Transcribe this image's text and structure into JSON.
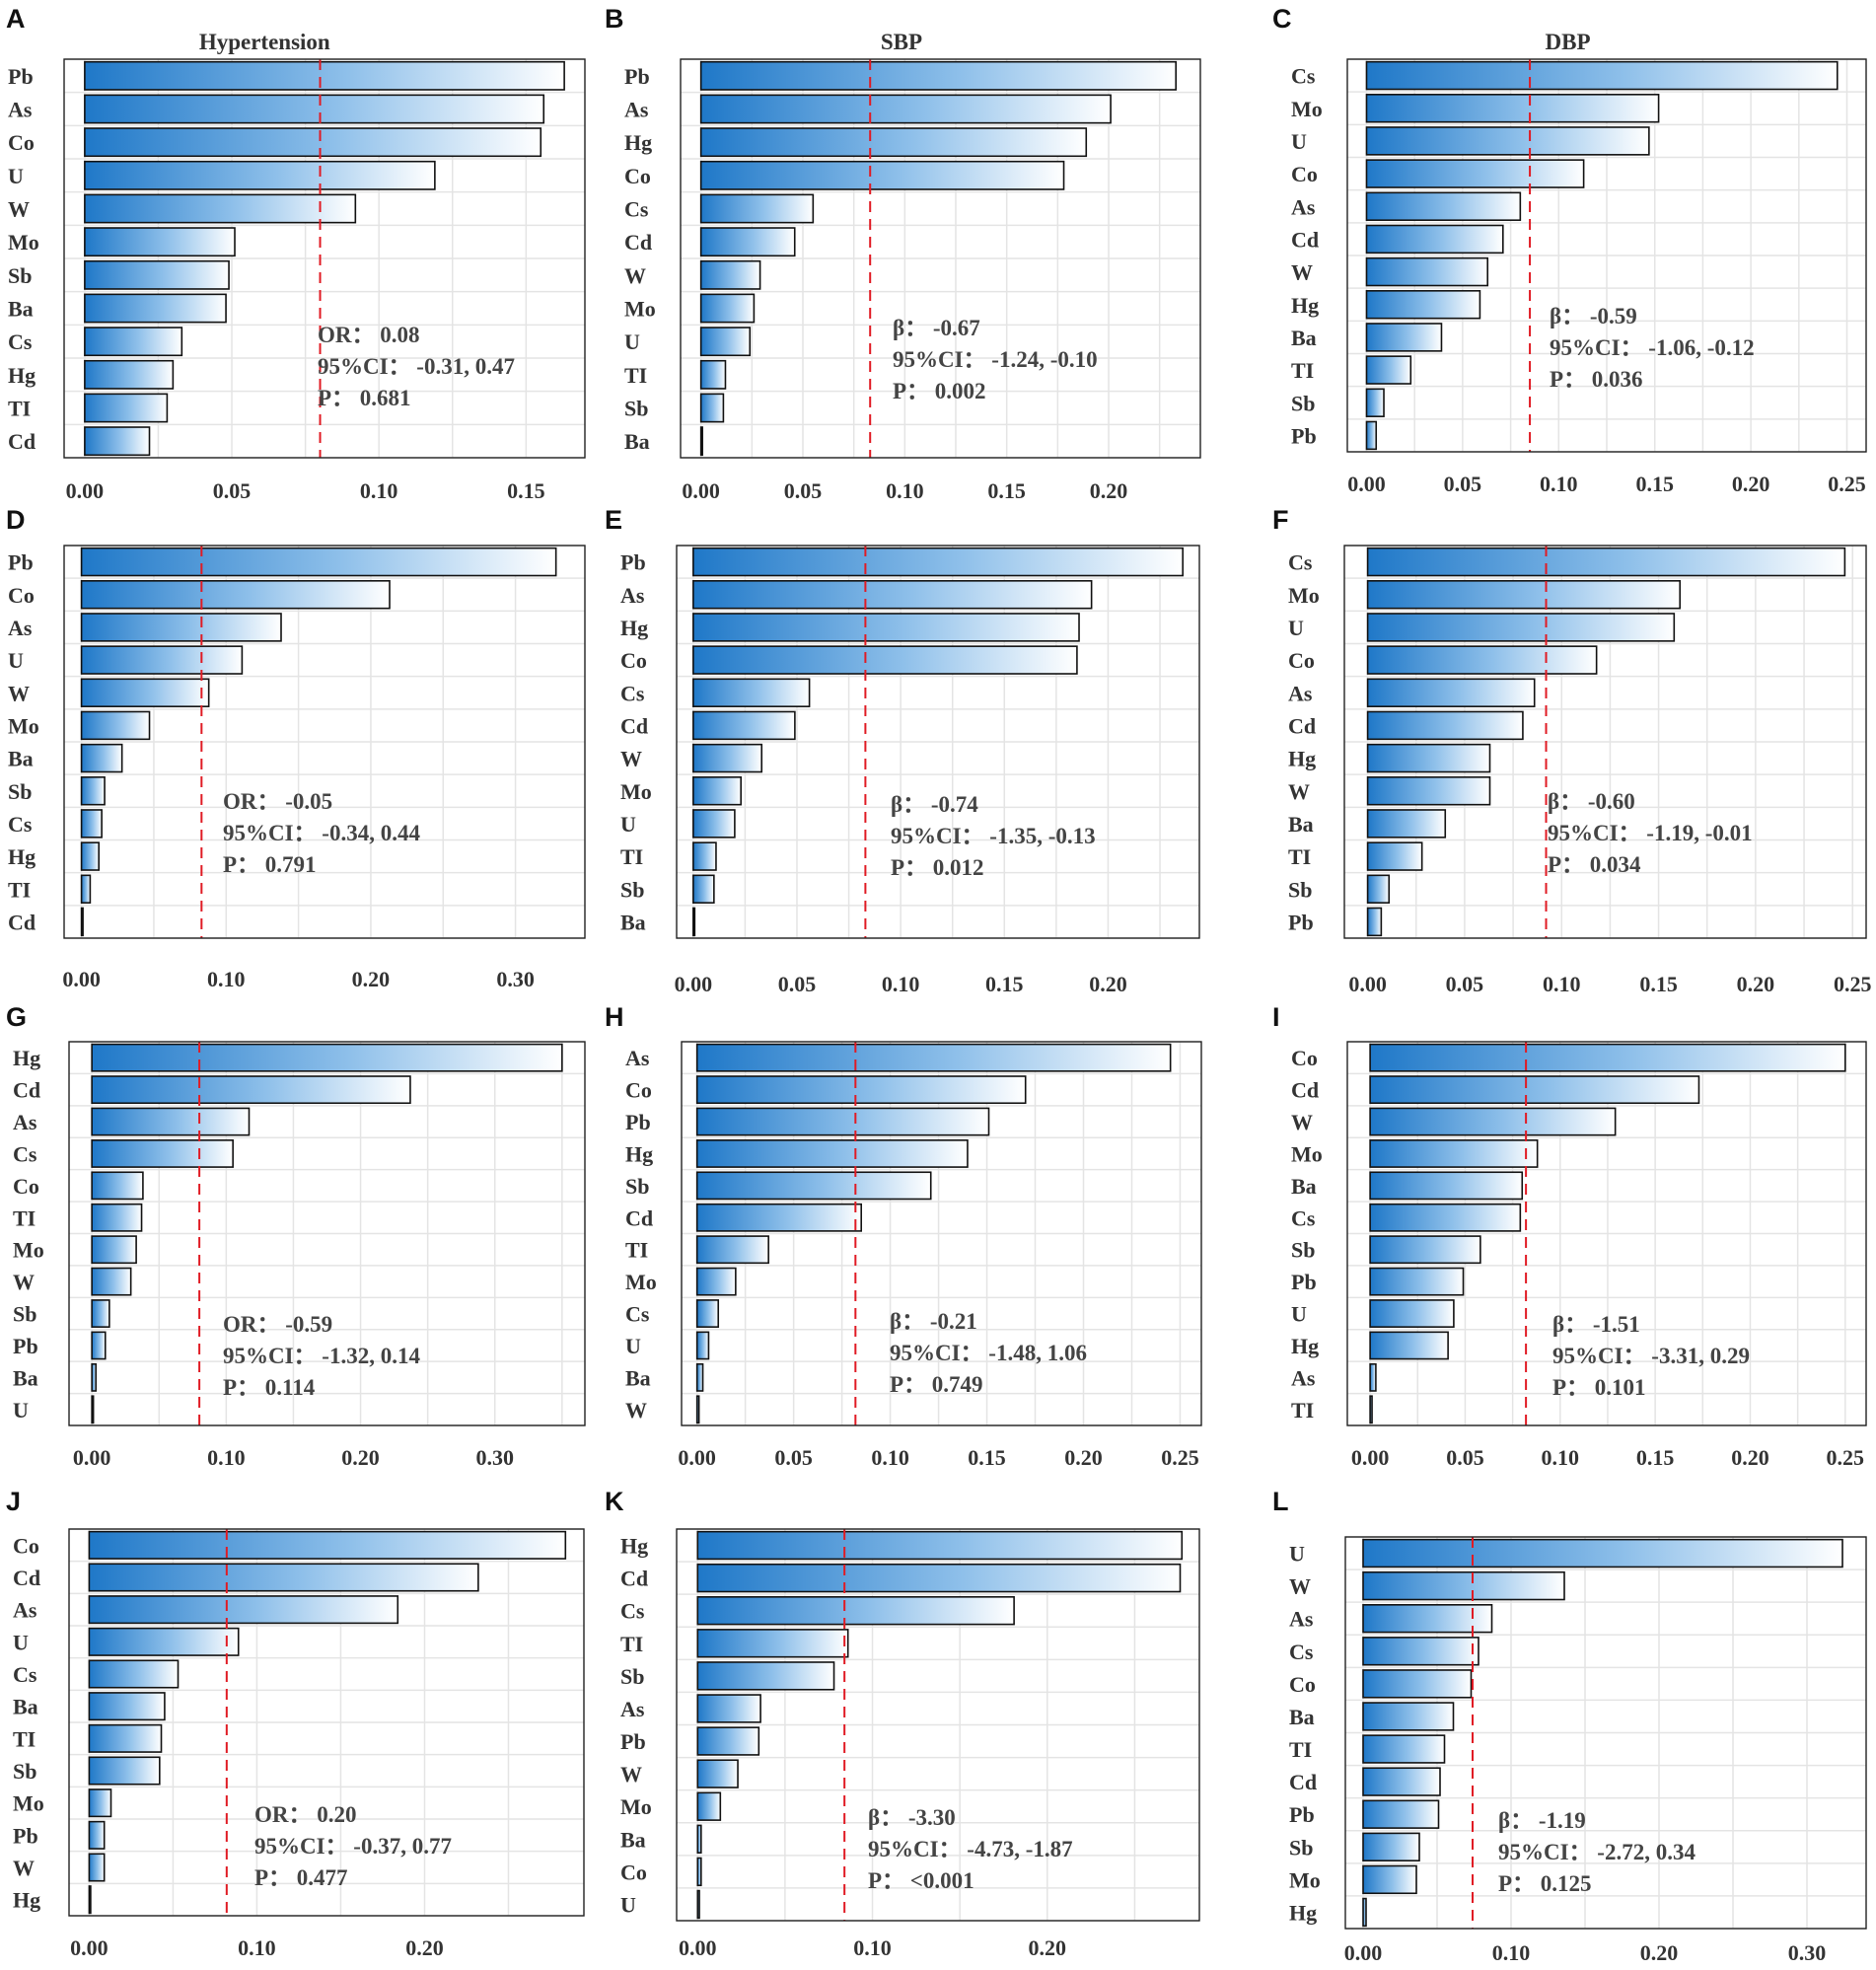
{
  "colors": {
    "bar_dark": "#1f78c8",
    "bar_light": "#ffffff",
    "reference_line": "#e01b24",
    "grid": "#e4e4e4"
  },
  "chart_data": [
    {
      "panel": "A",
      "title": "Hypertension",
      "type": "bar",
      "orientation": "horizontal",
      "categories": [
        "Pb",
        "As",
        "Co",
        "U",
        "W",
        "Mo",
        "Sb",
        "Ba",
        "Cs",
        "Hg",
        "TI",
        "Cd"
      ],
      "values": [
        0.163,
        0.156,
        0.155,
        0.119,
        0.092,
        0.051,
        0.049,
        0.048,
        0.033,
        0.03,
        0.028,
        0.022
      ],
      "xlim": [
        -0.007,
        0.17
      ],
      "xticks": [
        "0.00",
        "0.05",
        "0.10",
        "0.15"
      ],
      "reference_line": 0.08,
      "stats": [
        "OR：  0.08",
        "95%CI：  -0.31, 0.47",
        "P：  0.681"
      ]
    },
    {
      "panel": "B",
      "title": "SBP",
      "type": "bar",
      "orientation": "horizontal",
      "categories": [
        "Pb",
        "As",
        "Hg",
        "Co",
        "Cs",
        "Cd",
        "W",
        "Mo",
        "U",
        "TI",
        "Sb",
        "Ba"
      ],
      "values": [
        0.233,
        0.201,
        0.189,
        0.178,
        0.055,
        0.046,
        0.029,
        0.026,
        0.024,
        0.012,
        0.011,
        0.0
      ],
      "xlim": [
        -0.01,
        0.245
      ],
      "xticks": [
        "0.00",
        "0.05",
        "0.10",
        "0.15",
        "0.20"
      ],
      "reference_line": 0.083,
      "stats": [
        "β：  -0.67",
        "95%CI：  -1.24, -0.10",
        "P：  0.002"
      ]
    },
    {
      "panel": "C",
      "title": "DBP",
      "type": "bar",
      "orientation": "horizontal",
      "categories": [
        "Cs",
        "Mo",
        "U",
        "Co",
        "As",
        "Cd",
        "W",
        "Hg",
        "Ba",
        "TI",
        "Sb",
        "Pb"
      ],
      "values": [
        0.245,
        0.152,
        0.147,
        0.113,
        0.08,
        0.071,
        0.063,
        0.059,
        0.039,
        0.023,
        0.009,
        0.005
      ],
      "xlim": [
        -0.01,
        0.26
      ],
      "xticks": [
        "0.00",
        "0.05",
        "0.10",
        "0.15",
        "0.20",
        "0.25"
      ],
      "reference_line": 0.085,
      "stats": [
        "β：  -0.59",
        "95%CI：  -1.06, -0.12",
        "P：  0.036"
      ]
    },
    {
      "panel": "D",
      "title": "",
      "type": "bar",
      "orientation": "horizontal",
      "categories": [
        "Pb",
        "Co",
        "As",
        "U",
        "W",
        "Mo",
        "Ba",
        "Sb",
        "Cs",
        "Hg",
        "TI",
        "Cd"
      ],
      "values": [
        0.328,
        0.213,
        0.138,
        0.111,
        0.088,
        0.047,
        0.028,
        0.016,
        0.014,
        0.012,
        0.006,
        0.0
      ],
      "xlim": [
        -0.012,
        0.348
      ],
      "xticks": [
        "0.00",
        "0.10",
        "0.20",
        "0.30"
      ],
      "reference_line": 0.083,
      "stats": [
        "OR：  -0.05",
        "95%CI：  -0.34, 0.44",
        "P：  0.791"
      ]
    },
    {
      "panel": "E",
      "title": "",
      "type": "bar",
      "orientation": "horizontal",
      "categories": [
        "Pb",
        "As",
        "Hg",
        "Co",
        "Cs",
        "Cd",
        "W",
        "Mo",
        "U",
        "TI",
        "Sb",
        "Ba"
      ],
      "values": [
        0.236,
        0.192,
        0.186,
        0.185,
        0.056,
        0.049,
        0.033,
        0.023,
        0.02,
        0.011,
        0.01,
        0.0
      ],
      "xlim": [
        -0.008,
        0.244
      ],
      "xticks": [
        "0.00",
        "0.05",
        "0.10",
        "0.15",
        "0.20"
      ],
      "reference_line": 0.083,
      "stats": [
        "β：  -0.74",
        "95%CI：  -1.35, -0.13",
        "P：  0.012"
      ]
    },
    {
      "panel": "F",
      "title": "",
      "type": "bar",
      "orientation": "horizontal",
      "categories": [
        "Cs",
        "Mo",
        "U",
        "Co",
        "As",
        "Cd",
        "Hg",
        "W",
        "Ba",
        "TI",
        "Sb",
        "Pb"
      ],
      "values": [
        0.246,
        0.161,
        0.158,
        0.118,
        0.086,
        0.08,
        0.063,
        0.063,
        0.04,
        0.028,
        0.011,
        0.007
      ],
      "xlim": [
        -0.012,
        0.257
      ],
      "xticks": [
        "0.00",
        "0.05",
        "0.10",
        "0.15",
        "0.20",
        "0.25"
      ],
      "reference_line": 0.092,
      "stats": [
        "β：  -0.60",
        "95%CI：  -1.19, -0.01",
        "P：  0.034"
      ]
    },
    {
      "panel": "G",
      "title": "",
      "type": "bar",
      "orientation": "horizontal",
      "categories": [
        "Hg",
        "Cd",
        "As",
        "Cs",
        "Co",
        "TI",
        "Mo",
        "W",
        "Sb",
        "Pb",
        "Ba",
        "U"
      ],
      "values": [
        0.35,
        0.237,
        0.117,
        0.105,
        0.038,
        0.037,
        0.033,
        0.029,
        0.013,
        0.01,
        0.003,
        0.0
      ],
      "xlim": [
        -0.017,
        0.367
      ],
      "xticks": [
        "0.00",
        "0.10",
        "0.20",
        "0.30"
      ],
      "reference_line": 0.08,
      "stats": [
        "OR：  -0.59",
        "95%CI：  -1.32, 0.14",
        "P：  0.114"
      ]
    },
    {
      "panel": "H",
      "title": "",
      "type": "bar",
      "orientation": "horizontal",
      "categories": [
        "As",
        "Co",
        "Pb",
        "Hg",
        "Sb",
        "Cd",
        "TI",
        "Mo",
        "Cs",
        "U",
        "Ba",
        "W"
      ],
      "values": [
        0.245,
        0.17,
        0.151,
        0.14,
        0.121,
        0.085,
        0.037,
        0.02,
        0.011,
        0.006,
        0.003,
        0.001
      ],
      "xlim": [
        -0.008,
        0.261
      ],
      "xticks": [
        "0.00",
        "0.05",
        "0.10",
        "0.15",
        "0.20",
        "0.25"
      ],
      "reference_line": 0.082,
      "stats": [
        "β：  -0.21",
        "95%CI：  -1.48, 1.06",
        "P：  0.749"
      ]
    },
    {
      "panel": "I",
      "title": "",
      "type": "bar",
      "orientation": "horizontal",
      "categories": [
        "Co",
        "Cd",
        "W",
        "Mo",
        "Ba",
        "Cs",
        "Sb",
        "Pb",
        "U",
        "Hg",
        "As",
        "TI"
      ],
      "values": [
        0.25,
        0.173,
        0.129,
        0.088,
        0.08,
        0.079,
        0.058,
        0.049,
        0.044,
        0.041,
        0.003,
        0.001
      ],
      "xlim": [
        -0.012,
        0.261
      ],
      "xticks": [
        "0.00",
        "0.05",
        "0.10",
        "0.15",
        "0.20",
        "0.25"
      ],
      "reference_line": 0.082,
      "stats": [
        "β：  -1.51",
        "95%CI：  -3.31, 0.29",
        "P：  0.101"
      ]
    },
    {
      "panel": "J",
      "title": "",
      "type": "bar",
      "orientation": "horizontal",
      "categories": [
        "Co",
        "Cd",
        "As",
        "U",
        "Cs",
        "Ba",
        "TI",
        "Sb",
        "Mo",
        "Pb",
        "W",
        "Hg"
      ],
      "values": [
        0.284,
        0.232,
        0.184,
        0.089,
        0.053,
        0.045,
        0.043,
        0.042,
        0.013,
        0.009,
        0.009,
        0.0
      ],
      "xlim": [
        -0.012,
        0.295
      ],
      "xticks": [
        "0.00",
        "0.10",
        "0.20"
      ],
      "reference_line": 0.082,
      "stats": [
        "OR：  0.20",
        "95%CI：  -0.37, 0.77",
        "P：  0.477"
      ]
    },
    {
      "panel": "K",
      "title": "",
      "type": "bar",
      "orientation": "horizontal",
      "categories": [
        "Hg",
        "Cd",
        "Cs",
        "TI",
        "Sb",
        "As",
        "Pb",
        "W",
        "Mo",
        "Ba",
        "Co",
        "U"
      ],
      "values": [
        0.277,
        0.276,
        0.181,
        0.086,
        0.078,
        0.036,
        0.035,
        0.023,
        0.013,
        0.002,
        0.002,
        0.001
      ],
      "xlim": [
        -0.012,
        0.287
      ],
      "xticks": [
        "0.00",
        "0.10",
        "0.20"
      ],
      "reference_line": 0.084,
      "stats": [
        "β：  -3.30",
        "95%CI：  -4.73, -1.87",
        "P：  <0.001"
      ]
    },
    {
      "panel": "L",
      "title": "",
      "type": "bar",
      "orientation": "horizontal",
      "categories": [
        "U",
        "W",
        "As",
        "Cs",
        "Co",
        "Ba",
        "TI",
        "Cd",
        "Pb",
        "Sb",
        "Mo",
        "Hg"
      ],
      "values": [
        0.324,
        0.136,
        0.087,
        0.078,
        0.073,
        0.061,
        0.055,
        0.052,
        0.051,
        0.038,
        0.036,
        0.002
      ],
      "xlim": [
        -0.012,
        0.34
      ],
      "xticks": [
        "0.00",
        "0.10",
        "0.20",
        "0.30"
      ],
      "reference_line": 0.074,
      "stats": [
        "β：  -1.19",
        "95%CI：  -2.72, 0.34",
        "P：  0.125"
      ]
    }
  ]
}
